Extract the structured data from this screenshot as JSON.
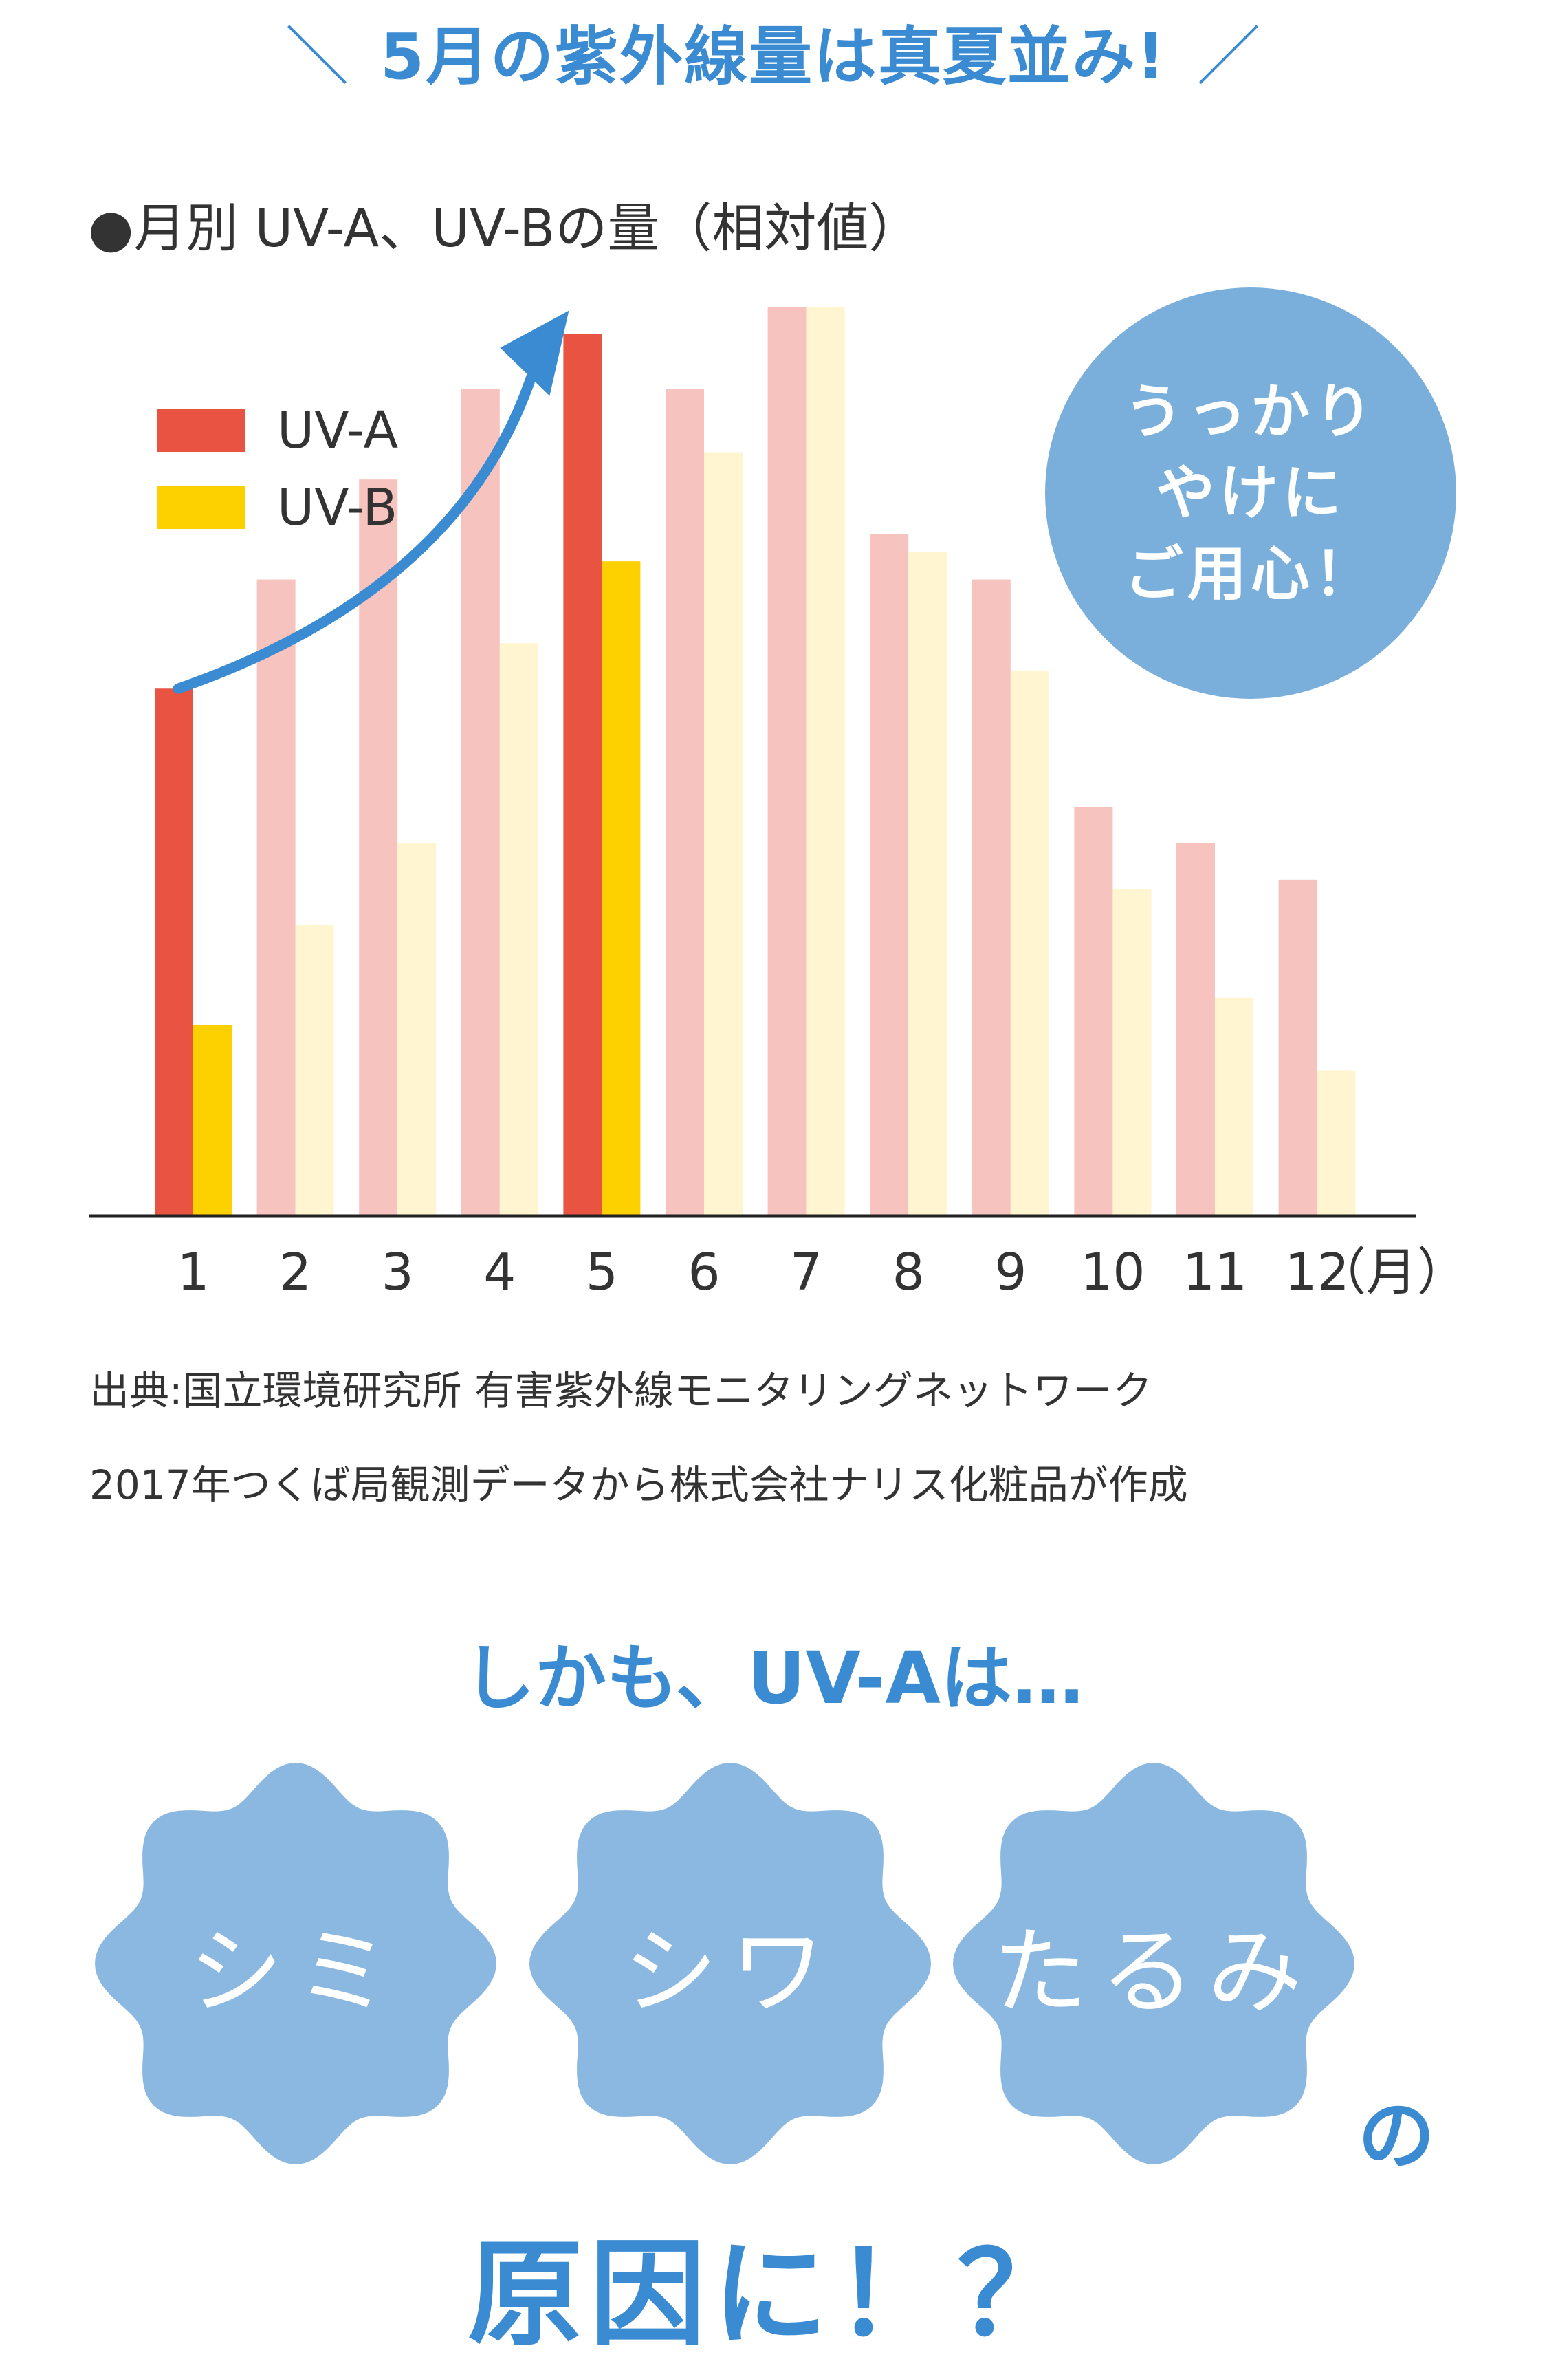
{
  "headline": {
    "slash_left": "＼",
    "text": "5月の紫外線量は真夏並み!",
    "slash_right": "／"
  },
  "chart_title": "●月別 UV-A、UV-Bの量（相対値）",
  "badge": {
    "lines": [
      "うっかり",
      "やけに",
      "ご用心！"
    ]
  },
  "source": {
    "line1": "出典:国立環境研究所 有害紫外線モニタリングネットワーク",
    "line2": "2017年つくば局観測データから株式会社ナリス化粧品が作成"
  },
  "sub_heading": "しかも、UV-Aは…",
  "causes": [
    "シミ",
    "シワ",
    "たるみ"
  ],
  "connector": "の",
  "conclusion": "原因に！？",
  "colors": {
    "uva_highlight": "#e85441",
    "uvb_highlight": "#fdd000",
    "uva_faded": "#f6c3be",
    "uvb_faded": "#fff6d1",
    "accent_blue": "#3a8bd1",
    "badge_blue": "#7aafdc",
    "bubble_blue": "#8ab8e1"
  },
  "chart_data": {
    "type": "bar",
    "categories": [
      "1",
      "2",
      "3",
      "4",
      "5",
      "6",
      "7",
      "8",
      "9",
      "10",
      "11",
      "12"
    ],
    "x_unit": "（月）",
    "series": [
      {
        "name": "UV-A",
        "values": [
          58,
          70,
          81,
          91,
          97,
          91,
          100,
          75,
          70,
          45,
          41,
          37
        ]
      },
      {
        "name": "UV-B",
        "values": [
          21,
          32,
          41,
          63,
          72,
          84,
          100,
          73,
          60,
          36,
          24,
          16
        ]
      }
    ],
    "highlight_months": [
      "1",
      "5"
    ],
    "ylim": [
      0,
      100
    ],
    "y_axis_shown": false,
    "grid": false,
    "legend_position": "top-left",
    "annotation": "arrow rising from month 1 to month 5"
  }
}
